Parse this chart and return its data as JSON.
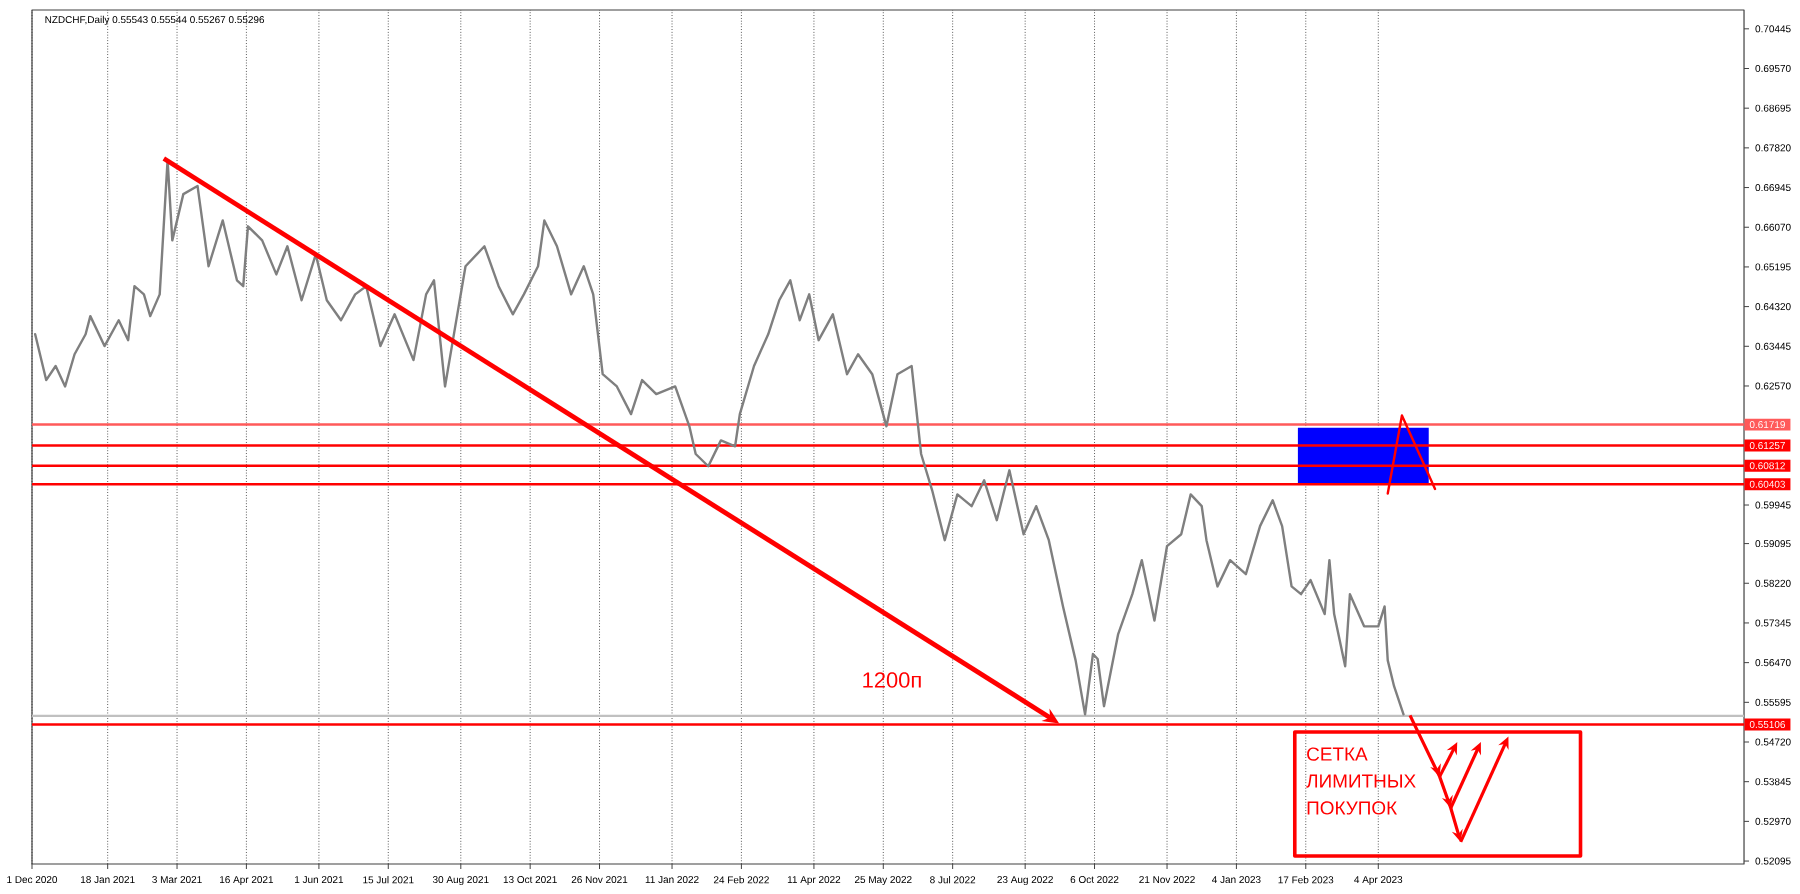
{
  "chart_data": {
    "type": "line",
    "title": "NZDCHF,Daily  0.55543 0.55544 0.55267 0.55296",
    "xlim": [
      "2020-12-01",
      "2023-11-22"
    ],
    "ylim": [
      0.5203,
      0.7086
    ],
    "xticks": [
      {
        "value": "2020-12-01",
        "label": "1 Dec 2020"
      },
      {
        "value": "2021-01-18",
        "label": "18 Jan 2021"
      },
      {
        "value": "2021-03-03",
        "label": "3 Mar 2021"
      },
      {
        "value": "2021-04-16",
        "label": "16 Apr 2021"
      },
      {
        "value": "2021-06-01",
        "label": "1 Jun 2021"
      },
      {
        "value": "2021-07-15",
        "label": "15 Jul 2021"
      },
      {
        "value": "2021-08-30",
        "label": "30 Aug 2021"
      },
      {
        "value": "2021-10-13",
        "label": "13 Oct 2021"
      },
      {
        "value": "2021-11-26",
        "label": "26 Nov 2021"
      },
      {
        "value": "2022-01-11",
        "label": "11 Jan 2022"
      },
      {
        "value": "2022-02-24",
        "label": "24 Feb 2022"
      },
      {
        "value": "2022-04-11",
        "label": "11 Apr 2022"
      },
      {
        "value": "2022-05-25",
        "label": "25 May 2022"
      },
      {
        "value": "2022-07-08",
        "label": "8 Jul 2022"
      },
      {
        "value": "2022-08-23",
        "label": "23 Aug 2022"
      },
      {
        "value": "2022-10-06",
        "label": "6 Oct 2022"
      },
      {
        "value": "2022-11-21",
        "label": "21 Nov 2022"
      },
      {
        "value": "2023-01-04",
        "label": "4 Jan 2023"
      },
      {
        "value": "2023-02-17",
        "label": "17 Feb 2023"
      },
      {
        "value": "2023-04-04",
        "label": "4 Apr 2023"
      }
    ],
    "yticks": [
      0.70445,
      {
        "value": 0.6957,
        "label": "0.69570"
      },
      0.68695,
      {
        "value": 0.6782,
        "label": "0.67820"
      },
      0.66945,
      {
        "value": 0.6607,
        "label": "0.66070"
      },
      0.65195,
      {
        "value": 0.6432,
        "label": "0.64320"
      },
      0.63445,
      {
        "value": 0.6257,
        "label": "0.62570"
      },
      0.59945,
      0.59095,
      {
        "value": 0.5822,
        "label": "0.58220"
      },
      0.57345,
      {
        "value": 0.5647,
        "label": "0.56470"
      },
      {
        "value": 0.55595,
        "label": "0.55595"
      },
      {
        "value": 0.5472,
        "label": "0.54720"
      },
      0.53845,
      {
        "value": 0.5297,
        "label": "0.52970"
      },
      0.52095
    ],
    "grid": "x",
    "series": [
      {
        "color": "#7f7f7f",
        "x": [
          "2020-12-03",
          "2020-12-10",
          "2020-12-16",
          "2020-12-22",
          "2020-12-28",
          "2021-01-04",
          "2021-01-07",
          "2021-01-16",
          "2021-01-25",
          "2021-01-31",
          "2021-02-04",
          "2021-02-10",
          "2021-02-14",
          "2021-02-20",
          "2021-02-25",
          "2021-02-28",
          "2021-03-07",
          "2021-03-16",
          "2021-03-23",
          "2021-04-01",
          "2021-04-10",
          "2021-04-14",
          "2021-04-17",
          "2021-04-26",
          "2021-05-05",
          "2021-05-12",
          "2021-05-21",
          "2021-05-30",
          "2021-06-06",
          "2021-06-15",
          "2021-06-24",
          "2021-07-01",
          "2021-07-10",
          "2021-07-19",
          "2021-07-31",
          "2021-08-08",
          "2021-08-13",
          "2021-08-20",
          "2021-08-25",
          "2021-09-02",
          "2021-09-14",
          "2021-09-23",
          "2021-10-02",
          "2021-10-09",
          "2021-10-18",
          "2021-10-22",
          "2021-10-30",
          "2021-11-08",
          "2021-11-16",
          "2021-11-22",
          "2021-11-28",
          "2021-12-07",
          "2021-12-16",
          "2021-12-23",
          "2022-01-01",
          "2022-01-13",
          "2022-01-22",
          "2022-01-26",
          "2022-02-03",
          "2022-02-11",
          "2022-02-20",
          "2022-02-23",
          "2022-03-04",
          "2022-03-13",
          "2022-03-20",
          "2022-03-27",
          "2022-04-02",
          "2022-04-08",
          "2022-04-14",
          "2022-04-23",
          "2022-05-02",
          "2022-05-09",
          "2022-05-18",
          "2022-05-27",
          "2022-06-03",
          "2022-06-12",
          "2022-06-18",
          "2022-06-25",
          "2022-07-03",
          "2022-07-11",
          "2022-07-20",
          "2022-07-28",
          "2022-08-05",
          "2022-08-13",
          "2022-08-22",
          "2022-08-30",
          "2022-09-07",
          "2022-09-16",
          "2022-09-24",
          "2022-09-30",
          "2022-10-05",
          "2022-10-08",
          "2022-10-12",
          "2022-10-21",
          "2022-10-30",
          "2022-11-05",
          "2022-11-13",
          "2022-11-21",
          "2022-11-30",
          "2022-12-06",
          "2022-12-13",
          "2022-12-16",
          "2022-12-23",
          "2022-12-31",
          "2023-01-10",
          "2023-01-19",
          "2023-01-27",
          "2023-02-02",
          "2023-02-08",
          "2023-02-14",
          "2023-02-20",
          "2023-03-01",
          "2023-03-04",
          "2023-03-07",
          "2023-03-14",
          "2023-03-17",
          "2023-03-26",
          "2023-04-04",
          "2023-04-08",
          "2023-04-10",
          "2023-04-14",
          "2023-04-20"
        ],
        "values": [
          0.6371,
          0.627,
          0.6301,
          0.6256,
          0.6327,
          0.6371,
          0.6411,
          0.6345,
          0.6402,
          0.6358,
          0.6477,
          0.6459,
          0.6411,
          0.6459,
          0.6755,
          0.6578,
          0.668,
          0.6698,
          0.6521,
          0.6622,
          0.649,
          0.6477,
          0.6609,
          0.6578,
          0.6503,
          0.6565,
          0.6446,
          0.6547,
          0.6446,
          0.6402,
          0.6459,
          0.6477,
          0.6345,
          0.6415,
          0.6314,
          0.6459,
          0.649,
          0.6256,
          0.6358,
          0.6521,
          0.6565,
          0.6477,
          0.6415,
          0.6459,
          0.6521,
          0.6622,
          0.6565,
          0.6459,
          0.6521,
          0.6459,
          0.6283,
          0.6256,
          0.6195,
          0.627,
          0.6239,
          0.6256,
          0.6168,
          0.6107,
          0.608,
          0.6137,
          0.6124,
          0.6195,
          0.6301,
          0.6371,
          0.6446,
          0.649,
          0.6402,
          0.6459,
          0.6358,
          0.6415,
          0.6283,
          0.6327,
          0.6283,
          0.6168,
          0.6283,
          0.6301,
          0.6107,
          0.6027,
          0.5917,
          0.6018,
          0.5992,
          0.6049,
          0.5961,
          0.6071,
          0.593,
          0.5992,
          0.5917,
          0.5771,
          0.5652,
          0.5533,
          0.5666,
          0.5655,
          0.5551,
          0.571,
          0.5798,
          0.5873,
          0.574,
          0.5904,
          0.593,
          0.6018,
          0.5992,
          0.5917,
          0.5815,
          0.5873,
          0.5842,
          0.5948,
          0.6005,
          0.5948,
          0.5815,
          0.5798,
          0.5829,
          0.5754,
          0.5873,
          0.5754,
          0.5639,
          0.5798,
          0.5727,
          0.5727,
          0.5771,
          0.5652,
          0.5595,
          0.5533
        ]
      },
      {
        "color": "#0000ff",
        "x": [
          "2023-02-12",
          "2023-05-06"
        ],
        "values": [
          null,
          null
        ],
        "lower": [
          0.60403,
          0.60403
        ],
        "upper": [
          0.6165,
          0.6165
        ]
      },
      {
        "color": "#ff0000",
        "x": [
          "2023-04-10",
          "2023-04-19",
          "2023-05-10"
        ],
        "values": [
          0.602,
          0.6192,
          0.603
        ]
      }
    ],
    "ref_lines": [
      {
        "axis": "y",
        "value": 0.61719,
        "label": "0.61719",
        "color": "#ff5a5a"
      },
      {
        "axis": "y",
        "value": 0.61257,
        "label": "0.61257",
        "color": "#ff0000"
      },
      {
        "axis": "y",
        "value": 0.60812,
        "label": "0.60812",
        "color": "#ff0000"
      },
      {
        "axis": "y",
        "value": 0.60403,
        "label": "0.60403",
        "color": "#ff0000"
      },
      {
        "axis": "y",
        "value": 0.55106,
        "label": "0.55106",
        "color": "#ff0000"
      },
      {
        "axis": "y",
        "value": 0.55296,
        "color": "#c0c0c0"
      }
    ],
    "annotations": [
      "1200п",
      "СЕТКА ЛИМИТНЫХ ПОКУПОК"
    ]
  }
}
